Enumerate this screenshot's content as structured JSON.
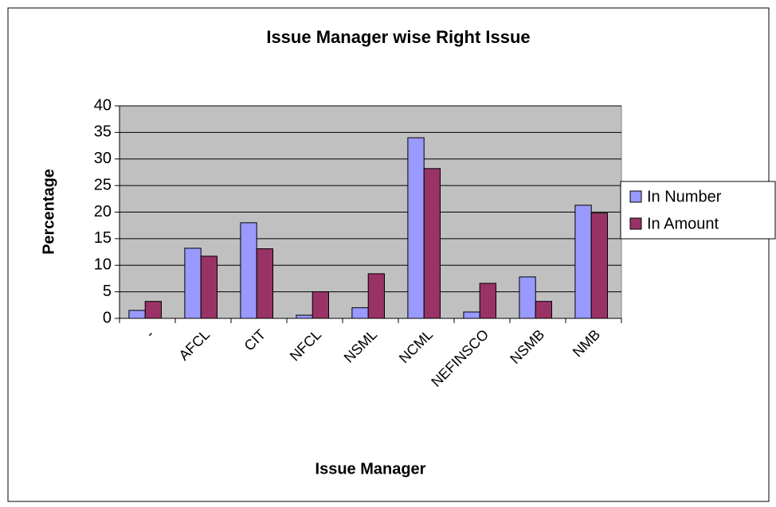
{
  "chart_data": {
    "type": "bar",
    "title": "Issue Manager wise Right Issue",
    "x_label": "Issue Manager",
    "y_label": "Percentage",
    "categories": [
      "-",
      "AFCL",
      "CIT",
      "NFCL",
      "NSML",
      "NCML",
      "NEFINSCO",
      "NSMB",
      "NMB"
    ],
    "series": [
      {
        "name": "In Number",
        "color": "#9999ff",
        "values": [
          1.5,
          13.2,
          18,
          0.6,
          2,
          34,
          1.2,
          7.8,
          21.3
        ]
      },
      {
        "name": "In Amount",
        "color": "#993366",
        "values": [
          3.2,
          11.7,
          13.1,
          5,
          8.4,
          28.2,
          6.6,
          3.2,
          19.8
        ]
      }
    ],
    "ylim": [
      0,
      40
    ],
    "yticks": [
      0,
      5,
      10,
      15,
      20,
      25,
      30,
      35,
      40
    ],
    "grid": true,
    "legend": "right"
  }
}
